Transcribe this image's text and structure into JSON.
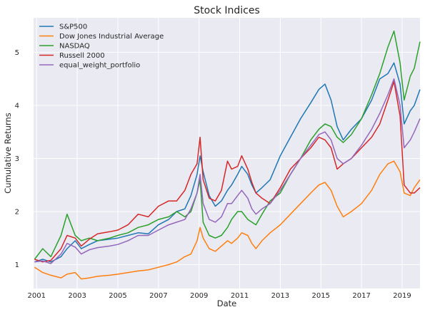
{
  "chart_data": {
    "type": "line",
    "title": "Stock Indices",
    "xlabel": "Date",
    "ylabel": "Cumulative Returns",
    "xlim": [
      2000.85,
      2019.88
    ],
    "ylim": [
      0.55,
      5.65
    ],
    "xticks": [
      2001,
      2003,
      2005,
      2007,
      2009,
      2011,
      2013,
      2015,
      2017,
      2019
    ],
    "yticks": [
      1,
      2,
      3,
      4,
      5
    ],
    "grid": true,
    "legend_position": "top-left",
    "x": [
      2000.9,
      2001.3,
      2001.7,
      2002.2,
      2002.5,
      2002.9,
      2003.2,
      2003.6,
      2004.0,
      2004.6,
      2005.0,
      2005.5,
      2006.0,
      2006.5,
      2007.0,
      2007.5,
      2007.9,
      2008.3,
      2008.6,
      2008.9,
      2009.05,
      2009.2,
      2009.5,
      2009.8,
      2010.1,
      2010.4,
      2010.6,
      2010.9,
      2011.1,
      2011.4,
      2011.6,
      2011.8,
      2012.1,
      2012.5,
      2013.0,
      2013.5,
      2014.0,
      2014.5,
      2014.9,
      2015.2,
      2015.5,
      2015.8,
      2016.1,
      2016.5,
      2017.0,
      2017.5,
      2017.9,
      2018.3,
      2018.6,
      2018.9,
      2019.1,
      2019.4,
      2019.6,
      2019.88
    ],
    "series": [
      {
        "name": "S&P500",
        "color": "#1f77b4",
        "values": [
          1.05,
          1.1,
          1.05,
          1.15,
          1.3,
          1.45,
          1.3,
          1.38,
          1.45,
          1.48,
          1.5,
          1.55,
          1.6,
          1.58,
          1.75,
          1.85,
          2.0,
          2.05,
          2.3,
          2.7,
          3.05,
          2.75,
          2.3,
          2.1,
          2.2,
          2.4,
          2.5,
          2.7,
          2.85,
          2.7,
          2.5,
          2.35,
          2.45,
          2.6,
          3.05,
          3.4,
          3.75,
          4.05,
          4.3,
          4.4,
          4.1,
          3.6,
          3.35,
          3.55,
          3.75,
          4.1,
          4.5,
          4.6,
          4.8,
          4.4,
          3.65,
          3.9,
          4.0,
          4.3
        ]
      },
      {
        "name": "Dow Jones Industrial Average",
        "color": "#ff7f0e",
        "values": [
          0.95,
          0.85,
          0.8,
          0.75,
          0.82,
          0.85,
          0.73,
          0.75,
          0.78,
          0.8,
          0.82,
          0.85,
          0.88,
          0.9,
          0.95,
          1.0,
          1.05,
          1.15,
          1.2,
          1.45,
          1.7,
          1.5,
          1.3,
          1.25,
          1.35,
          1.45,
          1.4,
          1.5,
          1.6,
          1.55,
          1.4,
          1.3,
          1.45,
          1.6,
          1.75,
          1.95,
          2.15,
          2.35,
          2.5,
          2.55,
          2.4,
          2.1,
          1.9,
          2.0,
          2.15,
          2.4,
          2.7,
          2.9,
          2.95,
          2.75,
          2.35,
          2.3,
          2.45,
          2.6
        ]
      },
      {
        "name": "NASDAQ",
        "color": "#2ca02c",
        "values": [
          1.1,
          1.3,
          1.15,
          1.55,
          1.95,
          1.55,
          1.45,
          1.5,
          1.45,
          1.5,
          1.55,
          1.6,
          1.7,
          1.75,
          1.85,
          1.9,
          2.0,
          1.9,
          2.0,
          2.35,
          2.6,
          1.8,
          1.55,
          1.5,
          1.55,
          1.7,
          1.85,
          2.0,
          2.0,
          1.85,
          1.8,
          1.75,
          1.95,
          2.2,
          2.35,
          2.7,
          3.0,
          3.35,
          3.55,
          3.65,
          3.6,
          3.4,
          3.3,
          3.45,
          3.75,
          4.2,
          4.6,
          5.1,
          5.4,
          4.8,
          4.1,
          4.55,
          4.7,
          5.2
        ]
      },
      {
        "name": "Russell 2000",
        "color": "#d62728",
        "values": [
          1.1,
          1.05,
          1.08,
          1.3,
          1.55,
          1.5,
          1.35,
          1.48,
          1.58,
          1.62,
          1.65,
          1.75,
          1.95,
          1.9,
          2.1,
          2.2,
          2.2,
          2.4,
          2.7,
          2.9,
          3.4,
          2.6,
          2.25,
          2.2,
          2.4,
          2.95,
          2.8,
          2.85,
          3.05,
          2.8,
          2.55,
          2.35,
          2.25,
          2.15,
          2.45,
          2.8,
          3.0,
          3.2,
          3.4,
          3.35,
          3.2,
          2.8,
          2.9,
          3.0,
          3.2,
          3.4,
          3.65,
          4.1,
          4.45,
          3.8,
          2.5,
          2.35,
          2.35,
          2.45
        ]
      },
      {
        "name": "equal_weight_portfolio",
        "color": "#9467bd",
        "values": [
          1.05,
          1.07,
          1.02,
          1.2,
          1.4,
          1.33,
          1.2,
          1.28,
          1.32,
          1.35,
          1.38,
          1.45,
          1.55,
          1.55,
          1.65,
          1.75,
          1.8,
          1.85,
          2.05,
          2.35,
          2.7,
          2.15,
          1.85,
          1.8,
          1.9,
          2.15,
          2.15,
          2.3,
          2.4,
          2.25,
          2.05,
          1.95,
          2.05,
          2.15,
          2.4,
          2.7,
          3.0,
          3.25,
          3.45,
          3.5,
          3.35,
          3.0,
          2.9,
          3.0,
          3.25,
          3.55,
          3.85,
          4.2,
          4.5,
          4.0,
          3.2,
          3.35,
          3.5,
          3.75
        ]
      }
    ]
  }
}
